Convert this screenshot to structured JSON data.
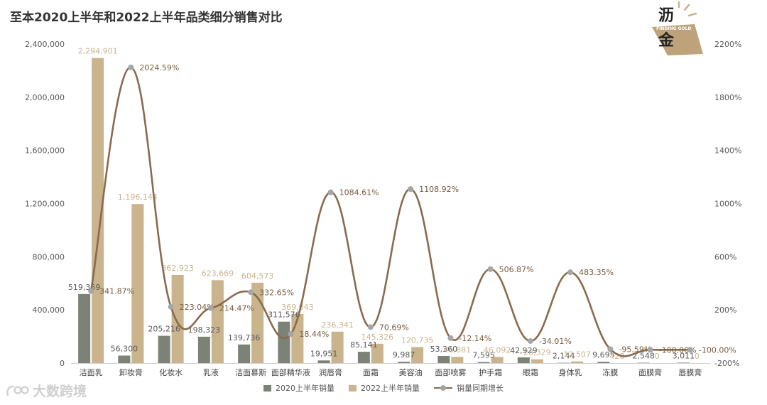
{
  "title": "至本2020上半年和2022上半年品类细分销售对比",
  "logo": {
    "text_top": "沥",
    "text_bottom": "金",
    "subtitle": "FINDING GOLD"
  },
  "watermark": "大数跨境",
  "colors": {
    "s2020": "#7c8276",
    "s2022": "#c9b48e",
    "growth_line": "#8b6a4c",
    "growth_marker": "#a6a6a6",
    "growth_label": "#7a5b3e",
    "label_2020": "#595959",
    "label_2022": "#c9b48e",
    "axis_text": "#595959"
  },
  "chart_data": {
    "type": "bar",
    "categories": [
      "洁面乳",
      "卸妆膏",
      "化妆水",
      "乳液",
      "洁面慕斯",
      "面部精华液",
      "润唇膏",
      "面霜",
      "美容油",
      "面部喷雾",
      "护手霜",
      "眼霜",
      "身体乳",
      "冻膜",
      "面膜膏",
      "唇膜膏"
    ],
    "series": [
      {
        "name": "2020上半年销量",
        "kind": "bar",
        "axis": "left",
        "values": [
          519359,
          56300,
          205216,
          198323,
          139736,
          311576,
          19951,
          85141,
          9987,
          53360,
          7595,
          42929,
          2144,
          9695,
          2548,
          3011
        ],
        "labels": [
          "519,359",
          "56,300",
          "205,216",
          "198,323",
          "139,736",
          "311,576",
          "19,951",
          "85,141",
          "9,987",
          "53,360",
          "7,595",
          "42,929",
          "2,144",
          "9,695",
          "2,548",
          "3,011"
        ]
      },
      {
        "name": "2022上半年销量",
        "kind": "bar",
        "axis": "left",
        "values": [
          2294901,
          1196144,
          662923,
          623669,
          604573,
          369043,
          236341,
          145326,
          120735,
          46881,
          46092,
          28329,
          12507,
          428,
          0,
          0
        ],
        "labels": [
          "2,294,901",
          "1,196,144",
          "662,923",
          "623,669",
          "604,573",
          "369,043",
          "236,341",
          "145,326",
          "120,735",
          "46,881",
          "46,092",
          "28,329",
          "12,507",
          "428",
          "0",
          "0"
        ]
      },
      {
        "name": "销量同期增长",
        "kind": "line",
        "axis": "right",
        "values": [
          341.87,
          2024.59,
          223.04,
          214.47,
          332.65,
          18.44,
          1084.61,
          70.69,
          1108.92,
          -12.14,
          506.87,
          -34.01,
          483.35,
          -95.59,
          -100.0,
          -100.0
        ],
        "labels": [
          "341.87%",
          "2024.59%",
          "223.04%",
          "214.47%",
          "332.65%",
          "18.44%",
          "1084.61%",
          "70.69%",
          "1108.92%",
          "-12.14%",
          "506.87%",
          "-34.01%",
          "483.35%",
          "-95.59%",
          "-100.00%",
          "-100.00%"
        ]
      }
    ],
    "y_left": {
      "min": 0,
      "max": 2400000,
      "ticks": [
        0,
        400000,
        800000,
        1200000,
        1600000,
        2000000,
        2400000
      ],
      "tick_labels": [
        "0",
        "400,000",
        "800,000",
        "1,200,000",
        "1,600,000",
        "2,000,000",
        "2,400,000"
      ]
    },
    "y_right": {
      "min": -200,
      "max": 2200,
      "ticks": [
        -200,
        200,
        600,
        1000,
        1400,
        1800,
        2200
      ],
      "tick_labels": [
        "-200%",
        "200%",
        "600%",
        "1000%",
        "1400%",
        "1800%",
        "2200%"
      ]
    },
    "grid": false,
    "legend_position": "bottom"
  }
}
